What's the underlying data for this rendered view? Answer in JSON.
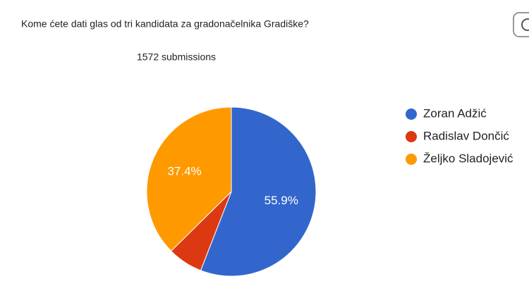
{
  "chart_data": {
    "type": "pie",
    "title": "Kome ćete dati glas od tri kandidata za gradonačelnika Gradiške?",
    "subtitle": "1572 submissions",
    "categories": [
      "Zoran Adžić",
      "Radislav Dončić",
      "Željko Sladojević"
    ],
    "values": [
      55.9,
      6.7,
      37.4
    ],
    "value_labels": [
      "55.9%",
      null,
      "37.4%"
    ],
    "colors": [
      "#3366cc",
      "#dc3912",
      "#ff9900"
    ],
    "legend": "right"
  }
}
